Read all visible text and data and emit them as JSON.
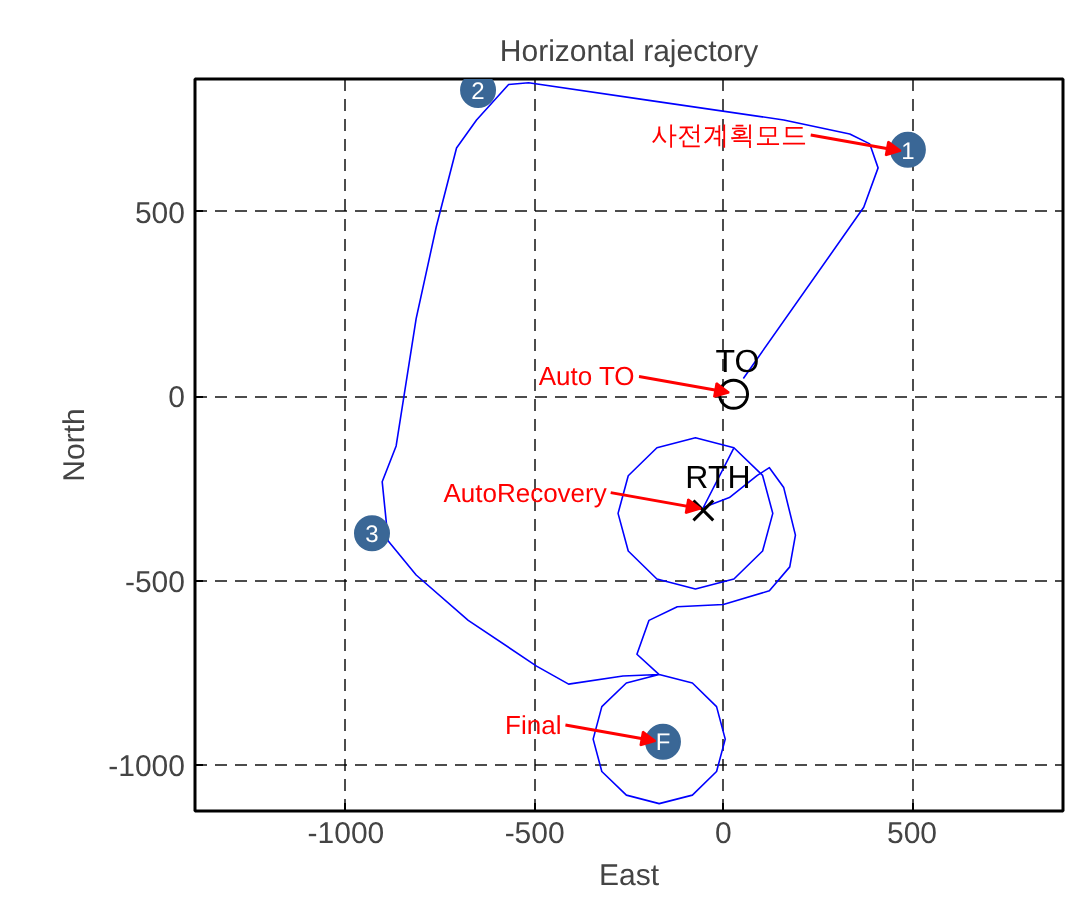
{
  "chart_data": {
    "type": "line",
    "title": "Horizontal rajectory",
    "xlabel": "East",
    "ylabel": "North",
    "xlim": [
      -1400,
      900
    ],
    "ylim": [
      -1125,
      860
    ],
    "xticks": [
      -1000,
      -500,
      0,
      500
    ],
    "yticks": [
      -1000,
      -500,
      0,
      500
    ],
    "grid": true,
    "line_style": "solid",
    "marker": "none",
    "series": [
      {
        "color": "#0000ff",
        "x": [
          53,
          372,
          410,
          388,
          335,
          160,
          -197,
          -516,
          -569,
          -654,
          -707,
          -761,
          -814,
          -867,
          -904,
          -888,
          -814,
          -676,
          -495,
          -410,
          -266,
          -170,
          -257,
          -322,
          -345,
          -322,
          -257,
          -170,
          -82,
          -18,
          5,
          -18,
          -82,
          -170,
          -229,
          -197,
          -122,
          0,
          122,
          176,
          191,
          160,
          122,
          90,
          16,
          -53,
          28,
          104,
          131,
          104,
          28,
          -74,
          -176,
          -252,
          -279,
          -252,
          -176,
          -74,
          28,
          104
        ],
        "values": [
          48,
          512,
          619,
          684,
          711,
          749,
          802,
          850,
          845,
          749,
          673,
          458,
          210,
          -135,
          -232,
          -393,
          -485,
          -608,
          -732,
          -781,
          -759,
          -755,
          -778,
          -842,
          -930,
          -1018,
          -1082,
          -1105,
          -1082,
          -1018,
          -930,
          -842,
          -778,
          -755,
          -700,
          -608,
          -571,
          -565,
          -528,
          -463,
          -377,
          -248,
          -194,
          -215,
          -275,
          -302,
          -140,
          -215,
          -318,
          -420,
          -496,
          -523,
          -496,
          -420,
          -318,
          -216,
          -140,
          -113,
          -140,
          -215
        ]
      },
      {
        "type": "scatter",
        "marker": "circle",
        "color": "#3a6796",
        "name": "1",
        "x": [
          489
        ],
        "values": [
          668
        ]
      },
      {
        "type": "scatter",
        "marker": "circle",
        "color": "#3a6796",
        "name": "2",
        "x": [
          -650
        ],
        "values": [
          830
        ]
      },
      {
        "type": "scatter",
        "marker": "circle",
        "color": "#3a6796",
        "name": "3",
        "x": [
          -931
        ],
        "values": [
          -372
        ]
      },
      {
        "type": "scatter",
        "marker": "circle",
        "color": "#3a6796",
        "name": "F",
        "x": [
          -160
        ],
        "values": [
          -937
        ]
      },
      {
        "type": "scatter",
        "marker": "circle",
        "color": "#000000",
        "name": "TO",
        "x": [
          27
        ],
        "values": [
          5
        ]
      },
      {
        "type": "scatter",
        "marker": "cross",
        "color": "#000000",
        "name": "RTH",
        "x": [
          -53
        ],
        "values": [
          -310
        ]
      }
    ],
    "annotations": [
      {
        "text": "사전계획모드",
        "x": 470,
        "y": 665
      },
      {
        "text": "Auto TO",
        "x": 15,
        "y": 10
      },
      {
        "text": "AutoRecovery",
        "x": -60,
        "y": -305
      },
      {
        "text": "Final",
        "x": -180,
        "y": -935
      }
    ]
  }
}
